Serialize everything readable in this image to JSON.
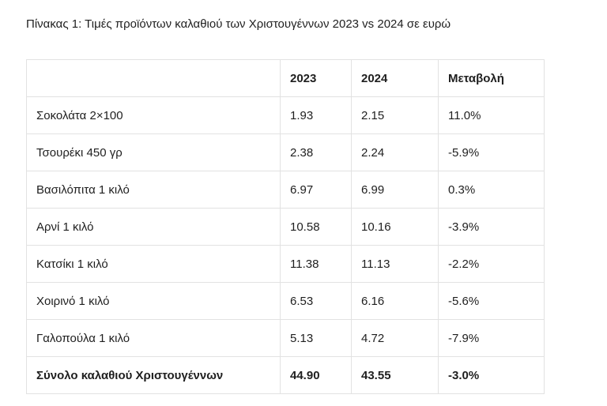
{
  "page": {
    "title": "Πίνακας 1: Τιμές προϊόντων καλαθιού των Χριστουγέννων 2023 vs 2024 σε ευρώ"
  },
  "table": {
    "headers": [
      "",
      "2023",
      "2024",
      "Μεταβολή"
    ],
    "rows": [
      {
        "product": "Σοκολάτα 2×100",
        "y2023": "1.93",
        "y2024": "2.15",
        "change": "11.0%"
      },
      {
        "product": "Τσουρέκι 450 γρ",
        "y2023": "2.38",
        "y2024": "2.24",
        "change": "-5.9%"
      },
      {
        "product": "Βασιλόπιτα 1 κιλό",
        "y2023": "6.97",
        "y2024": "6.99",
        "change": "0.3%"
      },
      {
        "product": "Αρνί 1 κιλό",
        "y2023": "10.58",
        "y2024": "10.16",
        "change": "-3.9%"
      },
      {
        "product": "Κατσίκι 1 κιλό",
        "y2023": "11.38",
        "y2024": "11.13",
        "change": "-2.2%"
      },
      {
        "product": "Χοιρινό 1 κιλό",
        "y2023": "6.53",
        "y2024": "6.16",
        "change": "-5.6%"
      },
      {
        "product": "Γαλοπούλα 1 κιλό",
        "y2023": "5.13",
        "y2024": "4.72",
        "change": "-7.9%"
      }
    ],
    "total": {
      "product": "Σύνολο καλαθιού Χριστουγέννων",
      "y2023": "44.90",
      "y2024": "43.55",
      "change": "-3.0%"
    }
  },
  "chart_data": {
    "type": "table",
    "title": "Πίνακας 1: Τιμές προϊόντων καλαθιού των Χριστουγέννων 2023 vs 2024 σε ευρώ",
    "columns": [
      "",
      "2023",
      "2024",
      "Μεταβολή"
    ],
    "rows": [
      [
        "Σοκολάτα 2×100",
        1.93,
        2.15,
        "11.0%"
      ],
      [
        "Τσουρέκι 450 γρ",
        2.38,
        2.24,
        "-5.9%"
      ],
      [
        "Βασιλόπιτα 1 κιλό",
        6.97,
        6.99,
        "0.3%"
      ],
      [
        "Αρνί 1 κιλό",
        10.58,
        10.16,
        "-3.9%"
      ],
      [
        "Κατσίκι 1 κιλό",
        11.38,
        11.13,
        "-2.2%"
      ],
      [
        "Χοιρινό 1 κιλό",
        6.53,
        6.16,
        "-5.6%"
      ],
      [
        "Γαλοπούλα 1 κιλό",
        5.13,
        4.72,
        "-7.9%"
      ],
      [
        "Σύνολο καλαθιού Χριστουγέννων",
        44.9,
        43.55,
        "-3.0%"
      ]
    ]
  },
  "colors": {
    "background": "#ffffff",
    "border": "#e2e2e2",
    "text": "#1f1f1f"
  }
}
